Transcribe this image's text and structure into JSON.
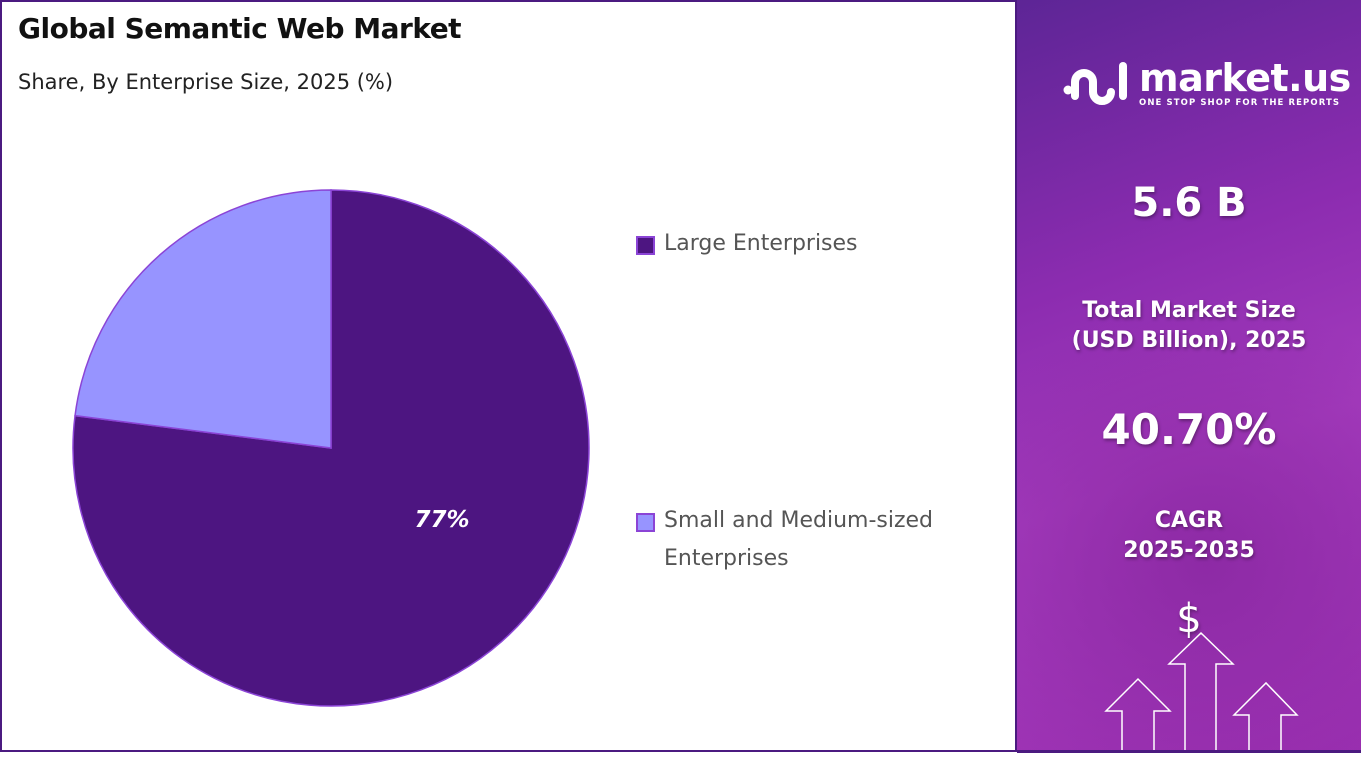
{
  "chart_data": {
    "type": "pie",
    "title": "Global Semantic Web Market",
    "subtitle": "Share, By Enterprise Size, 2025 (%)",
    "categories": [
      "Large Enterprises",
      "Small and Medium-sized Enterprises"
    ],
    "values": [
      77,
      23
    ],
    "data_labels": [
      "77%",
      ""
    ],
    "colors": [
      "#4d1581",
      "#9794ff"
    ],
    "start_angle": "12 o'clock, clockwise",
    "legend_position": "right"
  },
  "legend": [
    {
      "label": "Large Enterprises",
      "color": "#4d1581"
    },
    {
      "label": "Small and Medium-sized Enterprises",
      "color": "#9794ff"
    }
  ],
  "side_panel": {
    "logo": {
      "name": "market.us",
      "tagline": "ONE STOP SHOP FOR THE REPORTS"
    },
    "market_size": "5.6 B",
    "market_size_label_1": "Total Market Size",
    "market_size_label_2": "(USD Billion), 2025",
    "cagr": "40.70%",
    "cagr_label_1": "CAGR",
    "cagr_label_2": "2025-2035",
    "dollar_icon": "$"
  }
}
